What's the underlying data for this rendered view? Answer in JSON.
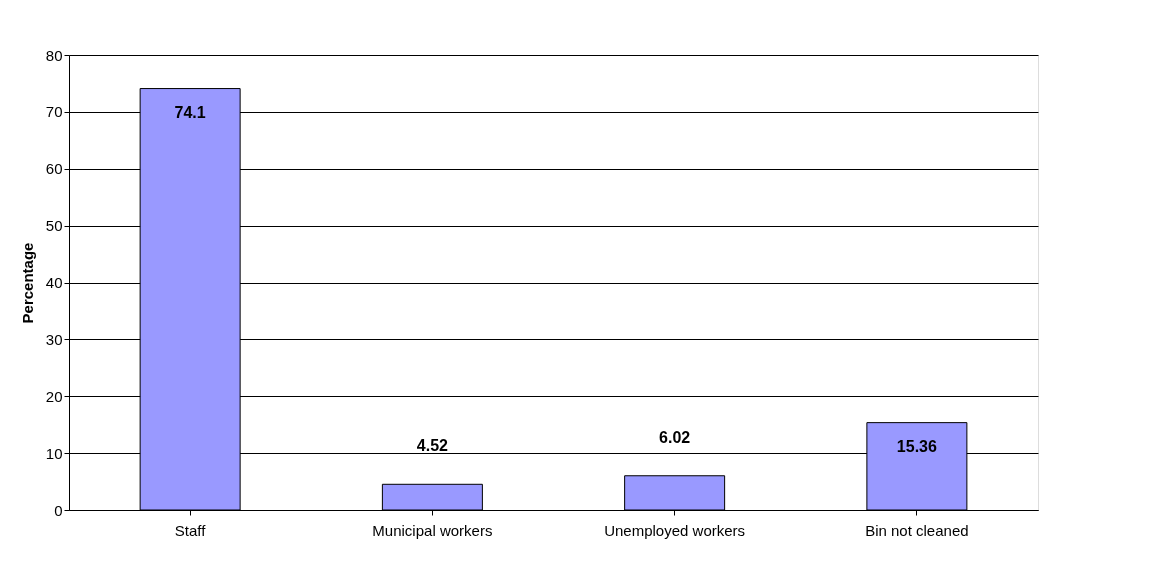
{
  "chart_data": {
    "type": "bar",
    "ylabel": "Percentage",
    "categories": [
      "Staff",
      "Municipal workers",
      "Unemployed workers",
      "Bin not cleaned"
    ],
    "values": [
      74.1,
      4.52,
      6.02,
      15.36
    ],
    "color": "#9999ff",
    "ylim": [
      0,
      80
    ],
    "yticks": [
      0,
      10,
      20,
      30,
      40,
      50,
      60,
      70,
      80
    ],
    "grid": "y",
    "data_labels": true
  }
}
